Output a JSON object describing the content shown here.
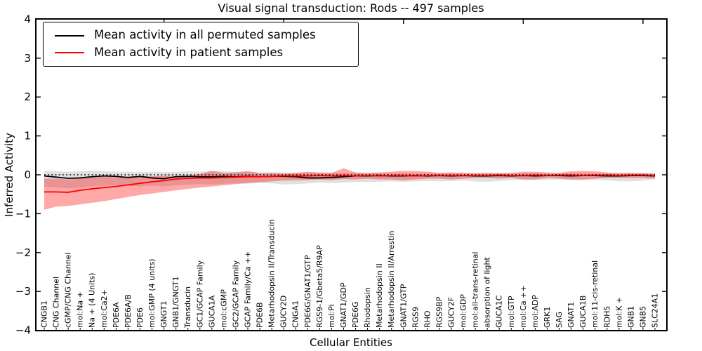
{
  "chart_data": {
    "type": "line",
    "title": "Visual signal transduction: Rods -- 497 samples",
    "xlabel": "Cellular Entities",
    "ylabel": "Inferred Activity",
    "ylim": [
      -4,
      4
    ],
    "yticks": [
      4,
      3,
      2,
      1,
      0,
      -1,
      -2,
      -3,
      -4
    ],
    "ytick_labels": [
      "4",
      "3",
      "2",
      "1",
      "0",
      "−1",
      "−2",
      "−3",
      "−4"
    ],
    "grid": false,
    "zero_line_style": "dotted",
    "legend_position": "upper left",
    "sample_count_in_title": 497,
    "categories": [
      "CNGB1",
      "CNG Channel",
      "cGMP/CNG Channel",
      "mol:Na +",
      "Na + (4 Units)",
      "mol:Ca2+",
      "PDE6A",
      "PDE6A/B",
      "PDE6",
      "mol:GMP (4 units)",
      "GNGT1",
      "GNB1/GNGT1",
      "Transducin",
      "GC1/GCAP Family",
      "GUCA1A",
      "mol:cGMP",
      "GC2/GCAP Family",
      "GCAP Family/Ca ++",
      "PDE6B",
      "Metarhodopsin II/Transducin",
      "GUCY2D",
      "CNGA1",
      "PDE6G/GNAT1/GTP",
      "RGS9-1/Gbeta5/R9AP",
      "mol:Pi",
      "GNAT1/GDP",
      "PDE6G",
      "Rhodopsin",
      "Metarhodopsin II",
      "Metarhodopsin II/Arrestin",
      "GNAT1/GTP",
      "RGS9",
      "RHO",
      "RGS9BP",
      "GUCY2F",
      "mol:GDP",
      "mol:all-trans-retinal",
      "absorption of light",
      "GUCA1C",
      "mol:GTP",
      "mol:Ca ++",
      "mol:ADP",
      "GRK1",
      "SAG",
      "GNAT1",
      "GUCA1B",
      "mol:11-cis-retinal",
      "RDH5",
      "mol:K +",
      "GNB1",
      "GNB5",
      "SLC24A1"
    ],
    "series": [
      {
        "name": "Mean activity in all permuted samples",
        "color": "#000000",
        "band_color": "#000000",
        "band_opacity": 0.12,
        "values": [
          -0.03,
          -0.06,
          -0.09,
          -0.08,
          -0.05,
          -0.03,
          -0.04,
          -0.07,
          -0.04,
          -0.08,
          -0.1,
          -0.05,
          -0.04,
          -0.05,
          -0.05,
          -0.04,
          -0.05,
          -0.04,
          -0.05,
          -0.04,
          -0.04,
          -0.05,
          -0.08,
          -0.08,
          -0.07,
          -0.05,
          -0.03,
          -0.03,
          -0.02,
          -0.03,
          -0.03,
          -0.02,
          -0.03,
          -0.02,
          -0.03,
          -0.02,
          -0.03,
          -0.03,
          -0.02,
          -0.03,
          -0.02,
          -0.03,
          -0.02,
          -0.02,
          -0.03,
          -0.02,
          -0.02,
          -0.03,
          -0.03,
          -0.02,
          -0.02,
          -0.03
        ],
        "band_upper": [
          0.1,
          0.09,
          0.08,
          0.09,
          0.1,
          0.09,
          0.08,
          0.08,
          0.07,
          0.08,
          0.07,
          0.08,
          0.09,
          0.08,
          0.1,
          0.09,
          0.08,
          0.07,
          0.06,
          0.07,
          0.06,
          0.05,
          0.06,
          0.05,
          0.06,
          0.05,
          0.05,
          0.04,
          0.05,
          0.04,
          0.05,
          0.04,
          0.05,
          0.04,
          0.04,
          0.05,
          0.04,
          0.04,
          0.05,
          0.04,
          0.04,
          0.05,
          0.04,
          0.04,
          0.05,
          0.04,
          0.04,
          0.04,
          0.05,
          0.04,
          0.04,
          0.04
        ],
        "band_lower": [
          -0.3,
          -0.33,
          -0.35,
          -0.33,
          -0.3,
          -0.28,
          -0.27,
          -0.28,
          -0.3,
          -0.28,
          -0.3,
          -0.27,
          -0.25,
          -0.24,
          -0.25,
          -0.23,
          -0.22,
          -0.23,
          -0.21,
          -0.22,
          -0.25,
          -0.24,
          -0.22,
          -0.2,
          -0.21,
          -0.2,
          -0.18,
          -0.19,
          -0.18,
          -0.17,
          -0.18,
          -0.17,
          -0.16,
          -0.17,
          -0.16,
          -0.15,
          -0.17,
          -0.18,
          -0.16,
          -0.14,
          -0.13,
          -0.14,
          -0.13,
          -0.12,
          -0.13,
          -0.14,
          -0.13,
          -0.14,
          -0.17,
          -0.17,
          -0.15,
          -0.12
        ]
      },
      {
        "name": "Mean activity in patient samples",
        "color": "#ff0000",
        "band_color": "#ff0000",
        "band_opacity": 0.34,
        "values": [
          -0.44,
          -0.44,
          -0.45,
          -0.4,
          -0.36,
          -0.33,
          -0.3,
          -0.26,
          -0.22,
          -0.18,
          -0.15,
          -0.11,
          -0.09,
          -0.08,
          -0.08,
          -0.07,
          -0.06,
          -0.05,
          -0.05,
          -0.04,
          -0.03,
          -0.03,
          -0.03,
          -0.02,
          -0.03,
          -0.02,
          -0.03,
          -0.02,
          -0.03,
          -0.02,
          -0.02,
          -0.03,
          -0.02,
          -0.02,
          -0.02,
          -0.02,
          -0.02,
          -0.02,
          -0.01,
          -0.02,
          -0.02,
          -0.01,
          -0.02,
          -0.01,
          -0.01,
          -0.02,
          -0.01,
          -0.01,
          -0.02,
          -0.01,
          -0.01,
          -0.02
        ],
        "band_upper": [
          -0.1,
          -0.1,
          -0.12,
          -0.09,
          -0.07,
          -0.05,
          -0.06,
          -0.04,
          -0.03,
          -0.04,
          -0.02,
          -0.03,
          -0.02,
          0.02,
          0.1,
          0.05,
          0.06,
          0.1,
          0.04,
          0.04,
          0.03,
          0.05,
          0.08,
          0.06,
          0.05,
          0.17,
          0.06,
          0.05,
          0.06,
          0.08,
          0.1,
          0.1,
          0.08,
          0.05,
          0.06,
          0.05,
          0.04,
          0.05,
          0.04,
          0.05,
          0.08,
          0.08,
          0.06,
          0.05,
          0.09,
          0.1,
          0.09,
          0.06,
          0.04,
          0.05,
          0.04,
          0.03
        ],
        "band_lower": [
          -0.9,
          -0.82,
          -0.8,
          -0.76,
          -0.72,
          -0.68,
          -0.62,
          -0.57,
          -0.52,
          -0.48,
          -0.44,
          -0.4,
          -0.36,
          -0.33,
          -0.3,
          -0.27,
          -0.24,
          -0.21,
          -0.19,
          -0.17,
          -0.15,
          -0.14,
          -0.13,
          -0.12,
          -0.13,
          -0.11,
          -0.12,
          -0.1,
          -0.12,
          -0.12,
          -0.14,
          -0.12,
          -0.1,
          -0.1,
          -0.12,
          -0.1,
          -0.08,
          -0.08,
          -0.1,
          -0.08,
          -0.12,
          -0.12,
          -0.08,
          -0.1,
          -0.12,
          -0.12,
          -0.1,
          -0.08,
          -0.08,
          -0.08,
          -0.08,
          -0.1
        ]
      }
    ]
  }
}
